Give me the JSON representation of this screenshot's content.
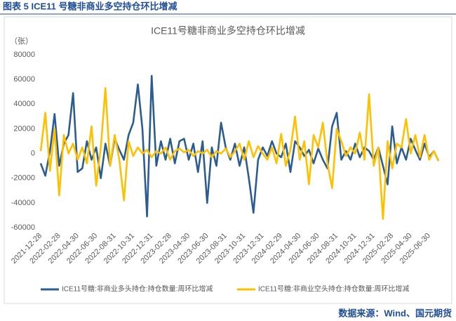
{
  "header": {
    "title": "图表 5  ICE11 号糖非商业多空持仓环比增减"
  },
  "source": "数据来源：Wind、国元期货",
  "chart_data": {
    "type": "line",
    "title": "ICE11号糖非商业多空持仓环比增减",
    "y_unit": "（张）",
    "categories": [
      "2021-12-28",
      null,
      null,
      null,
      "2022-02-28",
      null,
      null,
      null,
      "2022-04-30",
      null,
      null,
      null,
      "2022-06-30",
      null,
      null,
      null,
      "2022-08-31",
      null,
      null,
      null,
      "2022-10-31",
      null,
      null,
      null,
      "2022-12-31",
      null,
      null,
      null,
      "2023-02-28",
      null,
      null,
      null,
      "2023-04-30",
      null,
      null,
      null,
      "2023-06-30",
      null,
      null,
      null,
      "2023-08-31",
      null,
      null,
      null,
      "2023-10-31",
      null,
      null,
      null,
      "2023-12-31",
      null,
      null,
      null,
      "2024-02-29",
      null,
      null,
      null,
      "2024-04-30",
      null,
      null,
      null,
      "2024-06-30",
      null,
      null,
      null,
      "2024-08-31",
      null,
      null,
      null,
      "2024-10-31",
      null,
      null,
      null,
      "2024-12-31",
      null,
      null,
      null,
      "2025-02-28",
      null,
      null,
      null,
      "2025-04-30",
      null,
      null,
      null,
      "2025-06-30",
      null,
      null
    ],
    "series": [
      {
        "name": "ICE11号糖:非商业多头持仓:持仓数量:周环比增减",
        "color": "#2b5d91",
        "values": [
          -8000,
          -18000,
          2000,
          32000,
          -10000,
          8000,
          15000,
          49000,
          -15000,
          -12000,
          10000,
          -5000,
          5000,
          -20000,
          8000,
          -10000,
          12000,
          3000,
          -5000,
          15000,
          25000,
          56000,
          20000,
          -51000,
          63000,
          -10000,
          10000,
          -5000,
          12000,
          -8000,
          10000,
          12000,
          -5000,
          8000,
          -15000,
          10000,
          -40000,
          5000,
          -10000,
          25000,
          5000,
          -5000,
          8000,
          -10000,
          5000,
          -20000,
          -48000,
          -5000,
          5000,
          -2000,
          10000,
          0,
          -3000,
          8000,
          -15000,
          10000,
          5000,
          -2000,
          3000,
          -8000,
          4000,
          -5000,
          -12000,
          22000,
          33000,
          -5000,
          2000,
          -5000,
          8000,
          -3000,
          5000,
          2000,
          -5000,
          5000,
          -10000,
          -25000,
          22000,
          -8000,
          5000,
          -5000,
          12000,
          3000,
          -5000,
          8000,
          -3000,
          2000,
          -6000
        ]
      },
      {
        "name": "ICE11号糖:非商业空头持仓:持仓数量:周环比增减",
        "color": "#ffc000",
        "values": [
          2000,
          33000,
          -14000,
          20000,
          -34000,
          15000,
          0,
          8000,
          -5000,
          5000,
          -8000,
          22000,
          -26000,
          5000,
          53000,
          -10000,
          15000,
          -5000,
          -38000,
          10000,
          -2000,
          5000,
          0,
          3000,
          -3000,
          2000,
          0,
          5000,
          -5000,
          2000,
          4000,
          1000,
          3000,
          -2000,
          2000,
          0,
          3000,
          -3000,
          2000,
          0,
          4000,
          -3000,
          2000,
          8000,
          -5000,
          10000,
          -3000,
          6000,
          0,
          -5000,
          5000,
          -8000,
          16000,
          -10000,
          3000,
          30000,
          -5000,
          10000,
          -25000,
          15000,
          5000,
          25000,
          -8000,
          -28000,
          20000,
          10000,
          -2000,
          5000,
          0,
          17000,
          -5000,
          48000,
          -10000,
          5000,
          -53000,
          10000,
          -12000,
          8000,
          5000,
          28000,
          0,
          15000,
          -3000,
          15000,
          -5000,
          2000,
          -6000
        ]
      }
    ],
    "ylim": [
      -60000,
      80000
    ],
    "yticks": [
      -60000,
      -40000,
      -20000,
      0,
      20000,
      40000,
      60000,
      80000
    ],
    "grid": false,
    "legend": "bottom"
  }
}
